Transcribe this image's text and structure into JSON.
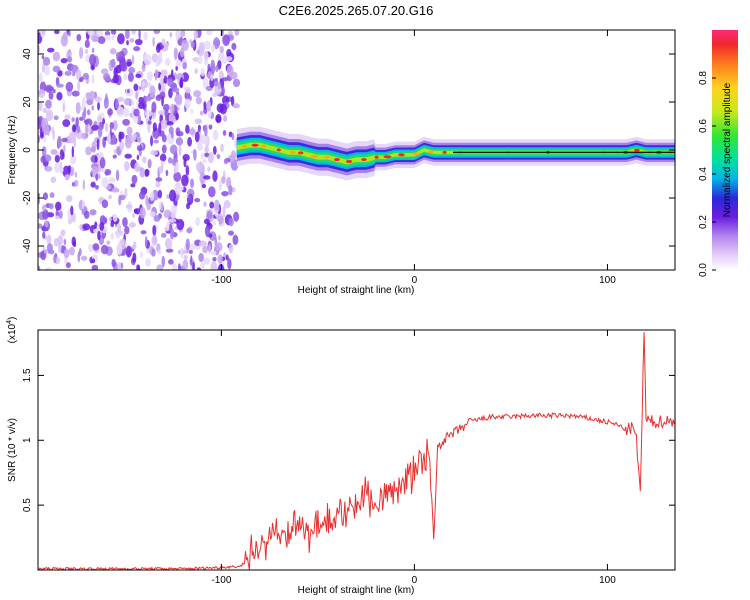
{
  "title": "C2E6.2025.265.07.20.G16",
  "chart_data": [
    {
      "type": "heatmap",
      "panel": "spectrogram",
      "xlabel": "Height of straight line (km)",
      "ylabel": "Frequency (Hz)",
      "xlim": [
        -195,
        135
      ],
      "ylim": [
        -50,
        50
      ],
      "xticks": [
        -100,
        0,
        100
      ],
      "yticks": [
        -40,
        -20,
        0,
        20,
        40
      ],
      "noise_region_end_km": -92,
      "ridge": [
        {
          "x": -92,
          "y": 1
        },
        {
          "x": -85,
          "y": 2
        },
        {
          "x": -80,
          "y": 2
        },
        {
          "x": -75,
          "y": 1
        },
        {
          "x": -70,
          "y": 0
        },
        {
          "x": -65,
          "y": -1
        },
        {
          "x": -60,
          "y": -1
        },
        {
          "x": -55,
          "y": -2
        },
        {
          "x": -50,
          "y": -3
        },
        {
          "x": -45,
          "y": -3
        },
        {
          "x": -40,
          "y": -4
        },
        {
          "x": -35,
          "y": -5
        },
        {
          "x": -30,
          "y": -4
        },
        {
          "x": -25,
          "y": -4
        },
        {
          "x": -20,
          "y": -3
        },
        {
          "x": -15,
          "y": -3
        },
        {
          "x": -10,
          "y": -2
        },
        {
          "x": -5,
          "y": -2
        },
        {
          "x": 0,
          "y": -2
        },
        {
          "x": 5,
          "y": 0
        },
        {
          "x": 10,
          "y": -1
        },
        {
          "x": 20,
          "y": -1
        },
        {
          "x": 40,
          "y": -1
        },
        {
          "x": 60,
          "y": -1
        },
        {
          "x": 80,
          "y": -1
        },
        {
          "x": 100,
          "y": -1
        },
        {
          "x": 110,
          "y": -1
        },
        {
          "x": 115,
          "y": 0
        },
        {
          "x": 120,
          "y": -1
        },
        {
          "x": 135,
          "y": -1
        }
      ]
    },
    {
      "type": "line",
      "panel": "snr",
      "xlabel": "Height of straight line (km)",
      "ylabel": "SNR (10 * v/v)",
      "scale_label": "(x10",
      "scale_exponent": "4",
      "xlim": [
        -195,
        135
      ],
      "ylim": [
        0,
        1.85
      ],
      "xticks": [
        -100,
        0,
        100
      ],
      "yticks": [
        0.5,
        1.0,
        1.5
      ],
      "series": [
        {
          "name": "SNR",
          "color": "#e8312f",
          "x": [
            -195,
            -180,
            -160,
            -140,
            -120,
            -100,
            -90,
            -85,
            -80,
            -75,
            -72,
            -70,
            -65,
            -60,
            -55,
            -50,
            -45,
            -42,
            -40,
            -35,
            -30,
            -25,
            -20,
            -15,
            -10,
            -5,
            0,
            3,
            5,
            7,
            9,
            10,
            12,
            15,
            20,
            25,
            30,
            40,
            50,
            60,
            70,
            80,
            90,
            100,
            105,
            110,
            113,
            115,
            117,
            118,
            119,
            120,
            125,
            130,
            135
          ],
          "y": [
            0.01,
            0.01,
            0.01,
            0.01,
            0.01,
            0.02,
            0.03,
            0.1,
            0.2,
            0.25,
            0.3,
            0.22,
            0.3,
            0.33,
            0.3,
            0.35,
            0.4,
            0.35,
            0.42,
            0.45,
            0.5,
            0.6,
            0.52,
            0.58,
            0.62,
            0.7,
            0.75,
            0.85,
            0.8,
            0.9,
            0.6,
            0.2,
            0.95,
            1.0,
            1.05,
            1.1,
            1.15,
            1.18,
            1.18,
            1.19,
            1.19,
            1.19,
            1.17,
            1.14,
            1.12,
            1.08,
            1.1,
            1.0,
            0.6,
            1.2,
            1.85,
            1.15,
            1.14,
            1.15,
            1.15
          ]
        }
      ]
    }
  ],
  "colorbar": {
    "label": "Normalized spectral amplitude",
    "ticks": [
      0.0,
      0.2,
      0.4,
      0.6,
      0.8
    ],
    "range": [
      0,
      1
    ]
  }
}
